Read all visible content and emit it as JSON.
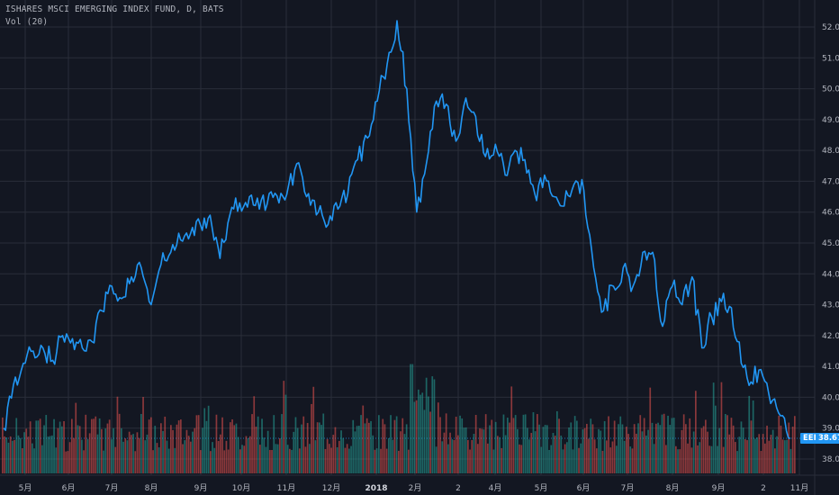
{
  "header": {
    "title": "ISHARES MSCI EMERGING INDEX FUND, D, BATS",
    "volume": "Vol (20)"
  },
  "colors": {
    "background": "#131722",
    "grid": "#2a2e39",
    "line": "#2196f3",
    "vol_up": "#26a69a",
    "vol_down": "#ef5350",
    "text": "#b2b5be"
  },
  "last_price": {
    "symbol": "EEM",
    "value": "38.67"
  },
  "chart_data": {
    "type": "line",
    "title": "ISHARES MSCI EMERGING INDEX FUND, D, BATS",
    "y_ticks": [
      "52.00",
      "51.00",
      "50.00",
      "49.00",
      "48.00",
      "47.00",
      "46.00",
      "45.00",
      "44.00",
      "43.00",
      "42.00",
      "41.00",
      "40.00",
      "39.00",
      "38.00"
    ],
    "ylim": [
      37.7,
      52.9
    ],
    "x_ticks": [
      "5月",
      "6月",
      "7月",
      "8月",
      "9月",
      "10月",
      "11月",
      "12月",
      "2018",
      "2月",
      "2",
      "4月",
      "5月",
      "6月",
      "7月",
      "8月",
      "9月",
      "2",
      "11月"
    ],
    "grid": true,
    "series": [
      {
        "x": [
          "2017-04-13",
          "2017-04-20",
          "2017-04-27",
          "2017-05-04",
          "2017-05-11",
          "2017-05-18",
          "2017-05-25",
          "2017-06-01",
          "2017-06-08",
          "2017-06-15",
          "2017-06-22",
          "2017-06-29",
          "2017-07-06",
          "2017-07-13",
          "2017-07-20",
          "2017-07-27",
          "2017-08-03",
          "2017-08-10",
          "2017-08-17",
          "2017-08-24",
          "2017-08-31",
          "2017-09-07",
          "2017-09-14",
          "2017-09-21",
          "2017-09-28",
          "2017-10-05",
          "2017-10-12",
          "2017-10-19",
          "2017-10-26",
          "2017-11-02",
          "2017-11-09",
          "2017-11-16",
          "2017-11-23",
          "2017-11-30",
          "2017-12-07",
          "2017-12-14",
          "2017-12-21",
          "2017-12-28",
          "2018-01-04",
          "2018-01-11",
          "2018-01-18",
          "2018-01-25",
          "2018-02-01",
          "2018-02-08",
          "2018-02-15",
          "2018-02-22",
          "2018-03-01",
          "2018-03-08",
          "2018-03-15",
          "2018-03-22",
          "2018-03-29",
          "2018-04-05",
          "2018-04-12",
          "2018-04-19",
          "2018-04-26",
          "2018-05-03",
          "2018-05-10",
          "2018-05-17",
          "2018-05-24",
          "2018-05-31",
          "2018-06-07",
          "2018-06-14",
          "2018-06-21",
          "2018-06-28",
          "2018-07-05",
          "2018-07-12",
          "2018-07-19",
          "2018-07-26",
          "2018-08-02",
          "2018-08-09",
          "2018-08-16",
          "2018-08-23",
          "2018-08-30",
          "2018-09-06",
          "2018-09-13",
          "2018-09-20",
          "2018-09-27",
          "2018-10-04",
          "2018-10-11",
          "2018-10-18",
          "2018-10-25"
        ],
        "y": [
          39.0,
          40.4,
          41.1,
          41.5,
          41.6,
          41.2,
          42.0,
          41.9,
          41.6,
          41.8,
          42.8,
          43.6,
          43.2,
          43.9,
          44.2,
          43.0,
          44.3,
          44.7,
          45.1,
          45.3,
          45.6,
          45.9,
          44.5,
          45.9,
          46.3,
          46.5,
          46.1,
          46.6,
          46.3,
          46.9,
          47.6,
          46.6,
          46.0,
          45.6,
          46.1,
          46.6,
          47.7,
          48.4,
          49.6,
          50.8,
          52.2,
          50.0,
          46.0,
          47.6,
          49.6,
          49.5,
          48.3,
          49.7,
          49.1,
          47.8,
          48.2,
          47.2,
          48.0,
          47.7,
          46.6,
          47.2,
          46.5,
          46.2,
          46.9,
          46.7,
          44.2,
          42.8,
          43.6,
          44.2,
          43.6,
          44.7,
          44.7,
          42.3,
          43.6,
          43.0,
          43.9,
          41.6,
          42.6,
          43.1,
          42.9,
          41.1,
          40.5,
          40.9,
          39.8,
          39.4,
          38.67
        ]
      }
    ],
    "volume": {
      "ylim_frac": 0.23
    }
  }
}
